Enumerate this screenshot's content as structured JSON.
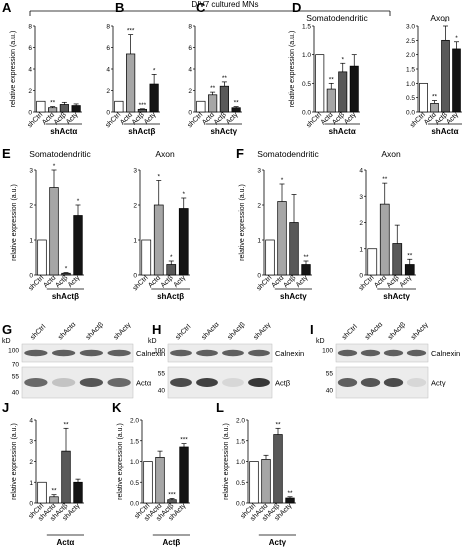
{
  "figure": {
    "header": "DIV7 cultured MNs",
    "ylabel": "relative expression (a.u.)",
    "kd_label": "kD"
  },
  "chart_data": [
    {
      "panel": "A",
      "type": "bar",
      "title": "",
      "group": "shActα",
      "ylabel": "relative expression (a.u.)",
      "ylim": [
        0,
        8
      ],
      "yticks": [
        0,
        2,
        4,
        6,
        8
      ],
      "categories": [
        "shCtrl",
        "Actα",
        "Actβ",
        "Actγ"
      ],
      "values": [
        1.0,
        0.4,
        0.7,
        0.6
      ],
      "errors": [
        0.0,
        0.1,
        0.2,
        0.15
      ],
      "colors": [
        "#ffffff",
        "#a6a6a6",
        "#595959",
        "#141414"
      ],
      "significance": [
        "",
        "**",
        "",
        ""
      ]
    },
    {
      "panel": "B",
      "type": "bar",
      "title": "",
      "group": "shActβ",
      "ylabel": "",
      "ylim": [
        0,
        8
      ],
      "yticks": [
        0,
        2,
        4,
        6,
        8
      ],
      "categories": [
        "shCtrl",
        "Actα",
        "Actβ",
        "Actγ"
      ],
      "values": [
        1.0,
        5.4,
        0.25,
        2.6
      ],
      "errors": [
        0.0,
        1.8,
        0.05,
        0.9
      ],
      "colors": [
        "#ffffff",
        "#a6a6a6",
        "#595959",
        "#141414"
      ],
      "significance": [
        "",
        "***",
        "***",
        "*"
      ]
    },
    {
      "panel": "C",
      "type": "bar",
      "title": "",
      "group": "shActγ",
      "ylabel": "",
      "ylim": [
        0,
        8
      ],
      "yticks": [
        0,
        2,
        4,
        6,
        8
      ],
      "categories": [
        "shCtrl",
        "Actα",
        "Actβ",
        "Actγ"
      ],
      "values": [
        1.0,
        1.6,
        2.4,
        0.4
      ],
      "errors": [
        0.0,
        0.25,
        0.4,
        0.1
      ],
      "colors": [
        "#ffffff",
        "#a6a6a6",
        "#595959",
        "#141414"
      ],
      "significance": [
        "",
        "**",
        "**",
        "**"
      ]
    },
    {
      "panel": "D1",
      "type": "bar",
      "title": "Somatodendritic",
      "group": "shActα",
      "ylabel": "relative expression (a.u.)",
      "ylim": [
        0,
        1.5
      ],
      "yticks": [
        0,
        0.5,
        1.0,
        1.5
      ],
      "categories": [
        "shCtrl",
        "Actα",
        "Actβ",
        "Actγ"
      ],
      "values": [
        1.0,
        0.4,
        0.7,
        0.8
      ],
      "errors": [
        0.0,
        0.1,
        0.15,
        0.2
      ],
      "colors": [
        "#ffffff",
        "#a6a6a6",
        "#595959",
        "#141414"
      ],
      "significance": [
        "",
        "**",
        "*",
        ""
      ]
    },
    {
      "panel": "D2",
      "type": "bar",
      "title": "Axon",
      "group": "shActα",
      "ylabel": "",
      "ylim": [
        0,
        3.0
      ],
      "yticks": [
        0,
        0.5,
        1.0,
        1.5,
        2.0,
        2.5,
        3.0
      ],
      "categories": [
        "shCtrl",
        "Actα",
        "Actβ",
        "Actγ"
      ],
      "values": [
        1.0,
        0.3,
        2.5,
        2.2
      ],
      "errors": [
        0.0,
        0.1,
        0.5,
        0.25
      ],
      "colors": [
        "#ffffff",
        "#a6a6a6",
        "#595959",
        "#141414"
      ],
      "significance": [
        "",
        "**",
        "*",
        "*"
      ]
    },
    {
      "panel": "E1",
      "type": "bar",
      "title": "Somatodendritic",
      "group": "shActβ",
      "ylabel": "relative expression (a.u.)",
      "ylim": [
        0,
        3
      ],
      "yticks": [
        0,
        1,
        2,
        3
      ],
      "categories": [
        "shCtrl",
        "Actα",
        "Actβ",
        "Actγ"
      ],
      "values": [
        1.0,
        2.5,
        0.05,
        1.7
      ],
      "errors": [
        0.0,
        0.5,
        0.02,
        0.3
      ],
      "colors": [
        "#ffffff",
        "#a6a6a6",
        "#595959",
        "#141414"
      ],
      "significance": [
        "",
        "*",
        "*",
        "*"
      ]
    },
    {
      "panel": "E2",
      "type": "bar",
      "title": "Axon",
      "group": "shActβ",
      "ylabel": "",
      "ylim": [
        0,
        3
      ],
      "yticks": [
        0,
        1,
        2,
        3
      ],
      "categories": [
        "shCtrl",
        "Actα",
        "Actβ",
        "Actγ"
      ],
      "values": [
        1.0,
        2.0,
        0.3,
        1.9
      ],
      "errors": [
        0.0,
        0.7,
        0.1,
        0.3
      ],
      "colors": [
        "#ffffff",
        "#a6a6a6",
        "#595959",
        "#141414"
      ],
      "significance": [
        "",
        "*",
        "*",
        "*"
      ]
    },
    {
      "panel": "F1",
      "type": "bar",
      "title": "Somatodendritic",
      "group": "shActγ",
      "ylabel": "relative expression (a.u.)",
      "ylim": [
        0,
        3
      ],
      "yticks": [
        0,
        1,
        2,
        3
      ],
      "categories": [
        "shCtrl",
        "Actα",
        "Actβ",
        "Actγ"
      ],
      "values": [
        1.0,
        2.1,
        1.5,
        0.3
      ],
      "errors": [
        0.0,
        0.5,
        0.8,
        0.1
      ],
      "colors": [
        "#ffffff",
        "#a6a6a6",
        "#595959",
        "#141414"
      ],
      "significance": [
        "",
        "*",
        "",
        "**"
      ]
    },
    {
      "panel": "F2",
      "type": "bar",
      "title": "Axon",
      "group": "shActγ",
      "ylabel": "",
      "ylim": [
        0,
        4
      ],
      "yticks": [
        0,
        1,
        2,
        3,
        4
      ],
      "categories": [
        "shCtrl",
        "Actα",
        "Actβ",
        "Actγ"
      ],
      "values": [
        1.0,
        2.7,
        1.2,
        0.4
      ],
      "errors": [
        0.0,
        0.8,
        0.7,
        0.2
      ],
      "colors": [
        "#ffffff",
        "#a6a6a6",
        "#595959",
        "#141414"
      ],
      "significance": [
        "",
        "**",
        "",
        "**"
      ]
    },
    {
      "panel": "J",
      "type": "bar",
      "title": "",
      "group": "Actα",
      "ylabel": "relative expression (a.u.)",
      "ylim": [
        0,
        4
      ],
      "yticks": [
        0,
        1,
        2,
        3,
        4
      ],
      "categories": [
        "shCtrl",
        "shActα",
        "shActβ",
        "shActγ"
      ],
      "values": [
        1.0,
        0.3,
        2.5,
        1.0
      ],
      "errors": [
        0.0,
        0.1,
        1.1,
        0.15
      ],
      "colors": [
        "#ffffff",
        "#a6a6a6",
        "#595959",
        "#141414"
      ],
      "significance": [
        "",
        "**",
        "**",
        ""
      ]
    },
    {
      "panel": "K",
      "type": "bar",
      "title": "",
      "group": "Actβ",
      "ylabel": "relative expression (a.u.)",
      "ylim": [
        0,
        2.0
      ],
      "yticks": [
        0,
        0.5,
        1.0,
        1.5,
        2.0
      ],
      "categories": [
        "shCtrl",
        "shActα",
        "shActβ",
        "shActγ"
      ],
      "values": [
        1.0,
        1.1,
        0.08,
        1.35
      ],
      "errors": [
        0.0,
        0.15,
        0.03,
        0.08
      ],
      "colors": [
        "#ffffff",
        "#a6a6a6",
        "#595959",
        "#141414"
      ],
      "significance": [
        "",
        "",
        "***",
        "***"
      ]
    },
    {
      "panel": "L",
      "type": "bar",
      "title": "",
      "group": "Actγ",
      "ylabel": "relative expression (a.u.)",
      "ylim": [
        0,
        2.0
      ],
      "yticks": [
        0,
        0.5,
        1.0,
        1.5,
        2.0
      ],
      "categories": [
        "shCtrl",
        "shActα",
        "shActβ",
        "shActγ"
      ],
      "values": [
        1.0,
        1.05,
        1.65,
        0.12
      ],
      "errors": [
        0.0,
        0.1,
        0.15,
        0.03
      ],
      "colors": [
        "#ffffff",
        "#a6a6a6",
        "#595959",
        "#141414"
      ],
      "significance": [
        "",
        "",
        "**",
        "**"
      ]
    }
  ],
  "blots": [
    {
      "panel": "G",
      "lanes": [
        "shCtrl",
        "shActα",
        "shActβ",
        "shActγ"
      ],
      "markers": [
        "100",
        "70",
        "55",
        "40"
      ],
      "bands": [
        "Calnexin",
        "Actα"
      ],
      "intensity": [
        [
          0.7,
          0.7,
          0.7,
          0.7
        ],
        [
          0.65,
          0.2,
          0.75,
          0.65
        ]
      ]
    },
    {
      "panel": "H",
      "lanes": [
        "shCtrl",
        "shActα",
        "shActβ",
        "shActγ"
      ],
      "markers": [
        "100",
        "55",
        "40"
      ],
      "bands": [
        "Calnexin",
        "Actβ"
      ],
      "intensity": [
        [
          0.7,
          0.7,
          0.7,
          0.7
        ],
        [
          0.8,
          0.85,
          0.1,
          0.9
        ]
      ]
    },
    {
      "panel": "I",
      "lanes": [
        "shCtrl",
        "shActα",
        "shActβ",
        "shActγ"
      ],
      "markers": [
        "100",
        "55",
        "40"
      ],
      "bands": [
        "Calnexin",
        "Actγ"
      ],
      "intensity": [
        [
          0.7,
          0.7,
          0.7,
          0.7
        ],
        [
          0.7,
          0.75,
          0.8,
          0.1
        ]
      ]
    }
  ],
  "panel_letters": [
    "A",
    "B",
    "C",
    "D",
    "E",
    "F",
    "G",
    "H",
    "I",
    "J",
    "K",
    "L"
  ]
}
